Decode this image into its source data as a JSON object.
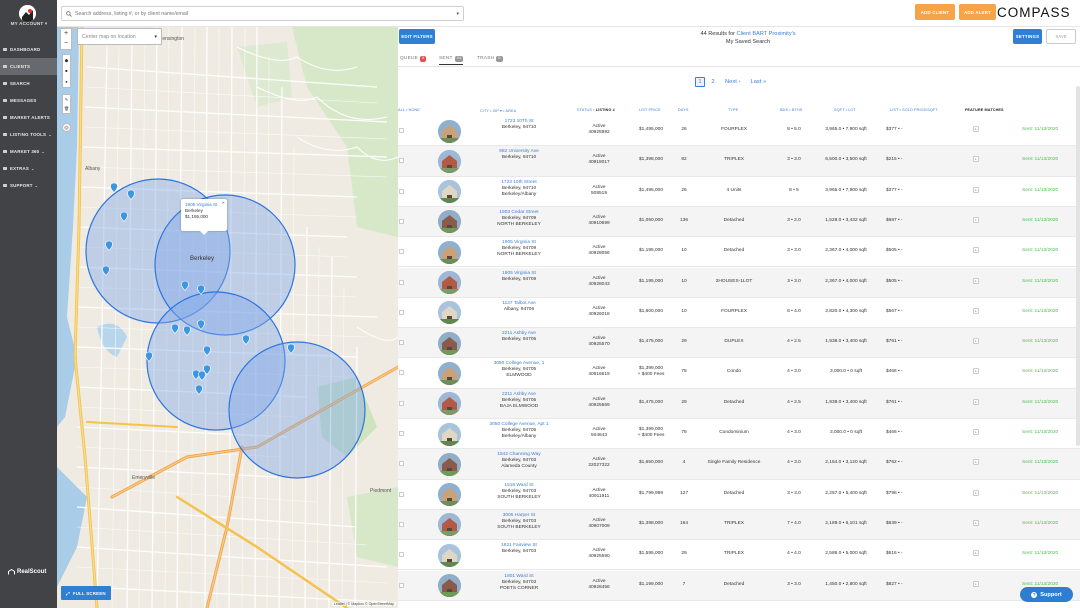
{
  "sidebar": {
    "account_label": "MY ACCOUNT ▾",
    "items": [
      {
        "label": "DASHBOARD",
        "chevron": ""
      },
      {
        "label": "CLIENTS",
        "chevron": ""
      },
      {
        "label": "SEARCH",
        "chevron": ""
      },
      {
        "label": "MESSAGES",
        "chevron": ""
      },
      {
        "label": "MARKET ALERTS",
        "chevron": ""
      },
      {
        "label": "LISTING TOOLS",
        "chevron": "⌄"
      },
      {
        "label": "MARKET 360",
        "chevron": "⌄"
      },
      {
        "label": "EXTRAS",
        "chevron": "⌄"
      },
      {
        "label": "SUPPORT",
        "chevron": "⌄"
      }
    ],
    "active_index": 1,
    "brand": "RealScout"
  },
  "topbar": {
    "search_placeholder": "Search address, listing #, or by client name/email",
    "add_client": "ADD CLIENT",
    "add_alert": "ADD ALERT",
    "brand": "COMPASS"
  },
  "map": {
    "center_placeholder": "Center map on location",
    "zoom_in": "+",
    "zoom_out": "−",
    "full_screen": "FULL SCREEN",
    "attribution": "Leaflet | © Mapbox © OpenStreetMap",
    "popup": {
      "address": "1905 Virginia St",
      "city": "Berkeley",
      "price": "$1,195,000"
    },
    "labels": {
      "berkeley": "Berkeley",
      "kensington": "Kensington",
      "albany": "Albany",
      "emeryville": "Emeryville",
      "piedmont": "Piedmont"
    }
  },
  "results": {
    "edit_filters": "EDIT FILTERS",
    "title_prefix": "44 Results for ",
    "title_client": "Client BART Proximity's",
    "title_line2": "My Saved Search",
    "settings": "SETTINGS",
    "save": "SAVE",
    "tabs": {
      "queue": {
        "label": "QUEUE",
        "count": "0"
      },
      "sent": {
        "label": "SENT",
        "count": "44"
      },
      "trash": {
        "label": "TRASH",
        "count": "0"
      }
    },
    "pager": {
      "p1": "1",
      "p2": "2",
      "next": "Next ›",
      "last": "Last »"
    },
    "headers": {
      "all_none": "ALL • NONE",
      "area": "CITY • ZIP ▾ • AREA",
      "status": "STATUS • ",
      "listing": "LISTING #",
      "price": "LIST PRICE",
      "days": "DAYS",
      "type": "TYPE",
      "beds": "BDS • BTHS",
      "sqft": "SQFT • LOT",
      "ppsf": "LIST • SOLD PRICE/SQFT",
      "features": "FEATURE MATCHES"
    },
    "rows": [
      {
        "addr": "1723 10Th St",
        "area1": "Berkeley, 94710",
        "area2": "",
        "status": "Active",
        "listing": "40925992",
        "price": "$1,495,000",
        "price2": "",
        "days": "26",
        "type": "FOURPLEX",
        "beds": "8 • 5.0",
        "sqft": "3,965.0 • 7,900 sqft",
        "ppsf": "$377 • -",
        "sent": "Sent: 11/13/2020"
      },
      {
        "addr": "982 University Ave",
        "area1": "Berkeley, 94710",
        "area2": "",
        "status": "Active",
        "listing": "40918017",
        "price": "$1,398,000",
        "price2": "",
        "days": "82",
        "type": "TRIPLEX",
        "beds": "3 • 3.0",
        "sqft": "6,500.0 • 3,500 sqft",
        "ppsf": "$215 • -",
        "sent": "Sent: 11/13/2020"
      },
      {
        "addr": "1723 10th Street",
        "area1": "Berkeley, 94710",
        "area2": "Berkeley/Albany",
        "status": "Active",
        "listing": "508519",
        "price": "$1,495,000",
        "price2": "",
        "days": "26",
        "type": "4 Units",
        "beds": "8 • 5",
        "sqft": "3,965.0 • 7,900 sqft",
        "ppsf": "$377 • -",
        "sent": "Sent: 11/13/2020"
      },
      {
        "addr": "1903 Cedar Street",
        "area1": "Berkeley, 94709",
        "area2": "NORTH BERKELEY",
        "status": "Active",
        "listing": "40910699",
        "price": "$1,050,000",
        "price2": "",
        "days": "136",
        "type": "Detached",
        "beds": "3 • 2.0",
        "sqft": "1,528.0 • 3,432 sqft",
        "ppsf": "$687 • -",
        "sent": "Sent: 11/13/2020"
      },
      {
        "addr": "1905 Virginia St",
        "area1": "Berkeley, 94709",
        "area2": "NORTH BERKELEY",
        "status": "Active",
        "listing": "40928056",
        "price": "$1,195,000",
        "price2": "",
        "days": "10",
        "type": "Detached",
        "beds": "3 • 3.0",
        "sqft": "2,367.0 • 4,000 sqft",
        "ppsf": "$505 • -",
        "sent": "Sent: 11/13/2020"
      },
      {
        "addr": "1905 Virginia St",
        "area1": "Berkeley, 94709",
        "area2": "",
        "status": "Active",
        "listing": "40928043",
        "price": "$1,195,000",
        "price2": "",
        "days": "10",
        "type": "2HOUSES-1LOT",
        "beds": "3 • 3.0",
        "sqft": "2,367.0 • 4,000 sqft",
        "ppsf": "$505 • -",
        "sent": "Sent: 11/13/2020"
      },
      {
        "addr": "1137 Talbot Ave",
        "area1": "Albany, 94706",
        "area2": "",
        "status": "Active",
        "listing": "40926018",
        "price": "$1,600,000",
        "price2": "",
        "days": "10",
        "type": "FOURPLEX",
        "beds": "8 • 4.0",
        "sqft": "2,820.0 • 4,300 sqft",
        "ppsf": "$567 • -",
        "sent": "Sent: 11/13/2020"
      },
      {
        "addr": "2211 Ashby Ave",
        "area1": "Berkeley, 94705",
        "area2": "",
        "status": "Active",
        "listing": "40925570",
        "price": "$1,475,000",
        "price2": "",
        "days": "29",
        "type": "DUPLEX",
        "beds": "4 • 2.5",
        "sqft": "1,938.0 • 3,400 sqft",
        "ppsf": "$761 • -",
        "sent": "Sent: 11/13/2020"
      },
      {
        "addr": "3050 College Avenue, 1",
        "area1": "Berkeley, 94705",
        "area2": "ELMWOOD",
        "status": "Active",
        "listing": "40916619",
        "price": "$1,399,000",
        "price2": "+ $400 Fees",
        "days": "78",
        "type": "Condo",
        "beds": "4 • 3.0",
        "sqft": "3,000.0 • 0 sqft",
        "ppsf": "$466 • -",
        "sent": "Sent: 11/13/2020"
      },
      {
        "addr": "2211 Ashby Ave",
        "area1": "Berkeley, 94705",
        "area2": "BAJA ELMWOOD",
        "status": "Active",
        "listing": "40925569",
        "price": "$1,475,000",
        "price2": "",
        "days": "29",
        "type": "Detached",
        "beds": "4 • 2.5",
        "sqft": "1,938.0 • 3,400 sqft",
        "ppsf": "$761 • -",
        "sent": "Sent: 11/13/2020"
      },
      {
        "addr": "3050 College Avenue, Apt 1",
        "area1": "Berkeley, 94705",
        "area2": "Berkeley/Albany",
        "status": "Active",
        "listing": "504643",
        "price": "$1,399,000",
        "price2": "+ $400 Fees",
        "days": "78",
        "type": "Condominium",
        "beds": "4 • 3.0",
        "sqft": "3,000.0 • 0 sqft",
        "ppsf": "$466 • -",
        "sent": "Sent: 11/13/2020"
      },
      {
        "addr": "1842 Channing Way",
        "area1": "Berkeley, 94703",
        "area2": "Alameda County",
        "status": "Active",
        "listing": "22027322",
        "price": "$1,650,000",
        "price2": "",
        "days": "4",
        "type": "Single Family Residence",
        "beds": "4 • 3.0",
        "sqft": "2,164.0 • 3,120 sqft",
        "ppsf": "$762 • -",
        "sent": "Sent: 11/13/2020"
      },
      {
        "addr": "1518 Ward St",
        "area1": "Berkeley, 94703",
        "area2": "SOUTH BERKELEY",
        "status": "Active",
        "listing": "40911911",
        "price": "$1,799,999",
        "price2": "",
        "days": "127",
        "type": "Detached",
        "beds": "3 • 3.0",
        "sqft": "2,257.0 • 5,400 sqft",
        "ppsf": "$798 • -",
        "sent": "Sent: 11/13/2020"
      },
      {
        "addr": "3005 Harper St",
        "area1": "Berkeley, 94703",
        "area2": "SOUTH BERKELEY",
        "status": "Active",
        "listing": "40907009",
        "price": "$1,398,000",
        "price2": "",
        "days": "164",
        "type": "TRIPLEX",
        "beds": "7 • 4.0",
        "sqft": "2,189.0 • 6,101 sqft",
        "ppsf": "$639 • -",
        "sent": "Sent: 11/13/2020"
      },
      {
        "addr": "1821 Fairview St",
        "area1": "Berkeley, 94703",
        "area2": "",
        "status": "Active",
        "listing": "40925590",
        "price": "$1,595,000",
        "price2": "",
        "days": "29",
        "type": "TRIPLEX",
        "beds": "4 • 4.0",
        "sqft": "2,586.0 • 5,000 sqft",
        "ppsf": "$616 • -",
        "sent": "Sent: 11/13/2020"
      },
      {
        "addr": "1801 Ward St",
        "area1": "Berkeley, 94703",
        "area2": "POETS CORNER",
        "status": "Active",
        "listing": "40928456",
        "price": "$1,199,000",
        "price2": "",
        "days": "7",
        "type": "Detached",
        "beds": "3 • 3.0",
        "sqft": "1,450.0 • 2,800 sqft",
        "ppsf": "$827 • -",
        "sent": "Sent: 11/13/2020"
      }
    ]
  },
  "support": "Support",
  "colors": {
    "accent": "#2f7fd3",
    "orange": "#f5a449",
    "sidebar": "#414346",
    "sent_green": "#4bbf49",
    "circle_fill": "#7ca6ea"
  },
  "icons": {
    "search": "search-icon",
    "support": "question-icon",
    "pin": "map-pin-icon"
  }
}
